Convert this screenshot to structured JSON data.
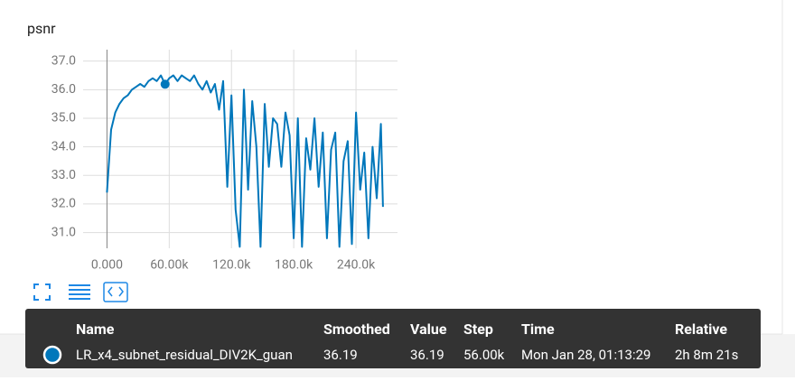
{
  "chart_data": {
    "type": "line",
    "title": "psnr",
    "x": [
      0,
      4000,
      8000,
      12000,
      16000,
      20000,
      24000,
      28000,
      32000,
      36000,
      40000,
      44000,
      48000,
      52000,
      56000,
      60000,
      64000,
      68000,
      72000,
      76000,
      80000,
      84000,
      88000,
      92000,
      96000,
      100000,
      104000,
      108000,
      112000,
      116000,
      120000,
      124000,
      128000,
      132000,
      136000,
      140000,
      144000,
      148000,
      152000,
      156000,
      160000,
      164000,
      168000,
      172000,
      176000,
      180000,
      184000,
      188000,
      192000,
      196000,
      200000,
      204000,
      208000,
      212000,
      216000,
      220000,
      224000,
      228000,
      232000,
      236000,
      240000,
      244000,
      248000,
      252000,
      256000,
      260000,
      264000,
      266000
    ],
    "series": [
      {
        "name": "LR_x4_subnet_residual_DIV2K_guan",
        "color": "#0077bb",
        "values": [
          32.4,
          34.6,
          35.2,
          35.5,
          35.7,
          35.8,
          36.0,
          36.1,
          36.2,
          36.1,
          36.3,
          36.4,
          36.3,
          36.5,
          36.19,
          36.4,
          36.5,
          36.3,
          36.5,
          36.4,
          36.3,
          36.5,
          36.2,
          36.0,
          36.3,
          35.9,
          36.2,
          35.3,
          36.3,
          32.6,
          35.8,
          31.8,
          30.5,
          36.0,
          32.5,
          35.6,
          34.0,
          30.5,
          35.5,
          33.3,
          35.0,
          34.8,
          33.3,
          35.2,
          34.4,
          30.8,
          35.0,
          30.5,
          34.3,
          33.2,
          35.0,
          32.6,
          34.5,
          30.8,
          33.9,
          34.5,
          30.5,
          33.5,
          34.2,
          30.6,
          35.2,
          32.5,
          33.8,
          30.8,
          34.0,
          32.2,
          34.8,
          31.9
        ]
      }
    ],
    "xlim": [
      -23000,
      280000
    ],
    "ylim": [
      30.45,
      37.4
    ],
    "xticks": [
      {
        "value": 0,
        "label": "0.000"
      },
      {
        "value": 60000,
        "label": "60.00k"
      },
      {
        "value": 120000,
        "label": "120.0k"
      },
      {
        "value": 180000,
        "label": "180.0k"
      },
      {
        "value": 240000,
        "label": "240.0k"
      }
    ],
    "yticks": [
      {
        "value": 31,
        "label": "31.0"
      },
      {
        "value": 32,
        "label": "32.0"
      },
      {
        "value": 33,
        "label": "33.0"
      },
      {
        "value": 34,
        "label": "34.0"
      },
      {
        "value": 35,
        "label": "35.0"
      },
      {
        "value": 36,
        "label": "36.0"
      },
      {
        "value": 37,
        "label": "37.0"
      }
    ],
    "grid": true,
    "highlight_index": 14
  },
  "tooltip": {
    "headers": [
      "Name",
      "Smoothed",
      "Value",
      "Step",
      "Time",
      "Relative"
    ],
    "row": [
      "LR_x4_subnet_residual_DIV2K_guan",
      "36.19",
      "36.19",
      "56.00k",
      "Mon Jan 28, 01:13:29",
      "2h 8m 21s"
    ]
  }
}
